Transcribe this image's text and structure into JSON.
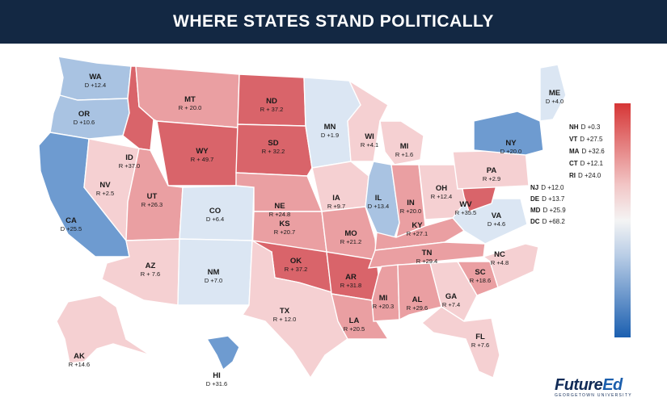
{
  "title": "WHERE STATES STAND POLITICALLY",
  "colors": {
    "header_bg": "#132843",
    "r_strong": "#d9646a",
    "r_mid": "#ea9fa2",
    "r_light": "#f5d0d2",
    "d_light": "#dbe6f3",
    "d_mid": "#a9c3e2",
    "d_strong": "#6e9bd0",
    "legend_top": "#d63636",
    "legend_bottom": "#1b5fb0"
  },
  "legend": {
    "type": "gradient",
    "from": "R",
    "to": "D"
  },
  "states": [
    {
      "abbr": "WA",
      "value": "D +12.4",
      "party": "D",
      "margin": 12.4
    },
    {
      "abbr": "OR",
      "value": "D +10.6",
      "party": "D",
      "margin": 10.6
    },
    {
      "abbr": "CA",
      "value": "D +25.5",
      "party": "D",
      "margin": 25.5
    },
    {
      "abbr": "NV",
      "value": "R +2.5",
      "party": "R",
      "margin": 2.5
    },
    {
      "abbr": "ID",
      "value": "R +37.0",
      "party": "R",
      "margin": 37.0
    },
    {
      "abbr": "MT",
      "value": "R + 20.0",
      "party": "R",
      "margin": 20.0
    },
    {
      "abbr": "WY",
      "value": "R + 49.7",
      "party": "R",
      "margin": 49.7
    },
    {
      "abbr": "UT",
      "value": "R +26.3",
      "party": "R",
      "margin": 26.3
    },
    {
      "abbr": "AZ",
      "value": "R + 7.6",
      "party": "R",
      "margin": 7.6
    },
    {
      "abbr": "CO",
      "value": "D +6.4",
      "party": "D",
      "margin": 6.4
    },
    {
      "abbr": "NM",
      "value": "D +7.0",
      "party": "D",
      "margin": 7.0
    },
    {
      "abbr": "ND",
      "value": "R + 37.2",
      "party": "R",
      "margin": 37.2
    },
    {
      "abbr": "SD",
      "value": "R + 32.2",
      "party": "R",
      "margin": 32.2
    },
    {
      "abbr": "NE",
      "value": "R +24.8",
      "party": "R",
      "margin": 24.8
    },
    {
      "abbr": "KS",
      "value": "R +20.7",
      "party": "R",
      "margin": 20.7
    },
    {
      "abbr": "OK",
      "value": "R + 37.2",
      "party": "R",
      "margin": 37.2
    },
    {
      "abbr": "TX",
      "value": "R + 12.0",
      "party": "R",
      "margin": 12.0
    },
    {
      "abbr": "MN",
      "value": "D +1.9",
      "party": "D",
      "margin": 1.9
    },
    {
      "abbr": "IA",
      "value": "R +9.7",
      "party": "R",
      "margin": 9.7
    },
    {
      "abbr": "MO",
      "value": "R +21.2",
      "party": "R",
      "margin": 21.2
    },
    {
      "abbr": "AR",
      "value": "R +31.8",
      "party": "R",
      "margin": 31.8
    },
    {
      "abbr": "LA",
      "value": "R +20.5",
      "party": "R",
      "margin": 20.5
    },
    {
      "abbr": "WI",
      "value": "R +4.1",
      "party": "R",
      "margin": 4.1
    },
    {
      "abbr": "IL",
      "value": "D +13.4",
      "party": "D",
      "margin": 13.4
    },
    {
      "abbr": "MI",
      "value": "R +1.6",
      "party": "R",
      "margin": 1.6
    },
    {
      "abbr": "IN",
      "value": "R +20.0",
      "party": "R",
      "margin": 20.0
    },
    {
      "abbr": "OH",
      "value": "R +12.4",
      "party": "R",
      "margin": 12.4
    },
    {
      "abbr": "KY",
      "value": "R +27.1",
      "party": "R",
      "margin": 27.1
    },
    {
      "abbr": "TN",
      "value": "R +29.4",
      "party": "R",
      "margin": 29.4
    },
    {
      "abbr": "MI",
      "value": "R +20.3",
      "party": "R",
      "margin": 20.3
    },
    {
      "abbr": "AL",
      "value": "R +29.6",
      "party": "R",
      "margin": 29.6
    },
    {
      "abbr": "GA",
      "value": "R +7.4",
      "party": "R",
      "margin": 7.4
    },
    {
      "abbr": "FL",
      "value": "R +7.6",
      "party": "R",
      "margin": 7.6
    },
    {
      "abbr": "SC",
      "value": "R +18.6",
      "party": "R",
      "margin": 18.6
    },
    {
      "abbr": "NC",
      "value": "R +4.8",
      "party": "R",
      "margin": 4.8
    },
    {
      "abbr": "VA",
      "value": "D +4.6",
      "party": "D",
      "margin": 4.6
    },
    {
      "abbr": "WV",
      "value": "R +35.5",
      "party": "R",
      "margin": 35.5
    },
    {
      "abbr": "PA",
      "value": "R +2.9",
      "party": "R",
      "margin": 2.9
    },
    {
      "abbr": "NY",
      "value": "D +20.0",
      "party": "D",
      "margin": 20.0
    },
    {
      "abbr": "ME",
      "value": "D +4.0",
      "party": "D",
      "margin": 4.0
    },
    {
      "abbr": "AK",
      "value": "R +14.6",
      "party": "R",
      "margin": 14.6
    },
    {
      "abbr": "HI",
      "value": "D +31.6",
      "party": "D",
      "margin": 31.6
    }
  ],
  "side_list": [
    {
      "abbr": "NH",
      "value": "D +0.3"
    },
    {
      "abbr": "VT",
      "value": "D +27.5"
    },
    {
      "abbr": "MA",
      "value": "D +32.6"
    },
    {
      "abbr": "CT",
      "value": "D +12.1"
    },
    {
      "abbr": "RI",
      "value": "D +24.0"
    },
    {
      "abbr": "NJ",
      "value": "D +12.0"
    },
    {
      "abbr": "DE",
      "value": "D +13.7"
    },
    {
      "abbr": "MD",
      "value": "D +25.9"
    },
    {
      "abbr": "DC",
      "value": "D +68.2"
    }
  ],
  "logo": {
    "main_a": "Future",
    "main_b": "Ed",
    "sub": "GEORGETOWN UNIVERSITY"
  }
}
